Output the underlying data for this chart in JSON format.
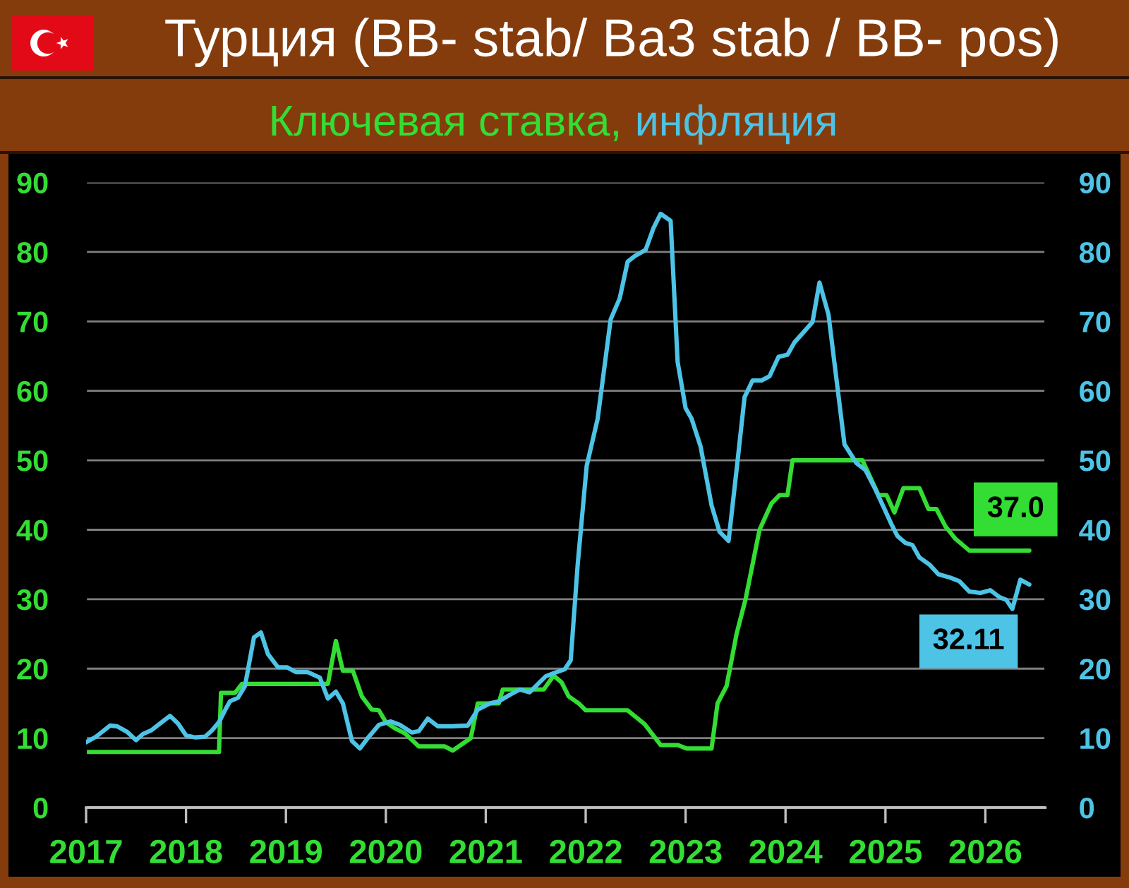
{
  "chart_data": {
    "type": "line",
    "title": "Турция (BB- stab/ Ba3 stab / BB- pos)",
    "xlim": [
      2017,
      2026.6
    ],
    "xticks": [
      2017,
      2018,
      2019,
      2020,
      2021,
      2022,
      2023,
      2024,
      2025,
      2026
    ],
    "ylim": [
      0,
      90
    ],
    "yticks": [
      0,
      10,
      20,
      30,
      40,
      50,
      60,
      70,
      80,
      90
    ],
    "y2lim": [
      0,
      90
    ],
    "y2ticks": [
      0,
      10,
      20,
      30,
      40,
      50,
      60,
      70,
      80,
      90
    ],
    "grid": "y",
    "legend": "top",
    "series": [
      {
        "name": "Ключевая ставка,",
        "color": "#33DD33",
        "x": [
          2017.0,
          2018.33,
          2018.35,
          2018.49,
          2018.56,
          2019.42,
          2019.5,
          2019.57,
          2019.67,
          2019.76,
          2019.86,
          2019.93,
          2020.0,
          2020.09,
          2020.19,
          2020.33,
          2020.59,
          2020.67,
          2020.85,
          2020.92,
          2021.13,
          2021.17,
          2021.58,
          2021.68,
          2021.76,
          2021.83,
          2021.93,
          2022.0,
          2022.42,
          2022.59,
          2022.75,
          2022.92,
          2023.01,
          2023.26,
          2023.32,
          2023.41,
          2023.51,
          2023.6,
          2023.67,
          2023.74,
          2023.86,
          2023.94,
          2024.02,
          2024.07,
          2024.77,
          2024.85,
          2024.93,
          2025.01,
          2025.09,
          2025.18,
          2025.34,
          2025.43,
          2025.51,
          2025.6,
          2025.7,
          2025.84,
          2026.44
        ],
        "values": [
          8,
          8,
          16.5,
          16.5,
          17.8,
          17.8,
          24,
          19.7,
          19.7,
          16,
          14.1,
          14,
          12.3,
          11.4,
          10.7,
          8.8,
          8.8,
          8.2,
          10,
          15,
          15,
          17,
          17,
          19,
          18,
          16,
          15,
          14,
          14,
          12,
          9,
          9,
          8.5,
          8.5,
          15,
          17.5,
          25,
          30,
          35,
          40,
          43.8,
          45,
          45,
          50,
          50,
          47.5,
          45,
          45,
          42.5,
          46,
          46,
          43,
          43,
          40.5,
          38.7,
          37,
          37
        ],
        "value_labels": [
          null,
          null,
          null,
          null,
          null,
          null,
          null,
          null,
          null,
          null,
          null,
          null,
          null,
          null,
          null,
          null,
          null,
          null,
          null,
          null,
          null,
          null,
          null,
          null,
          null,
          null,
          null,
          null,
          null,
          null,
          null,
          null,
          null,
          null,
          null,
          null,
          null,
          null,
          null,
          null,
          null,
          null,
          null,
          null,
          null,
          null,
          null,
          null,
          null,
          null,
          null,
          null,
          null,
          null,
          null,
          null,
          "37.0"
        ]
      },
      {
        "name": "инфляция",
        "color": "#4DC3E6",
        "axis": "y2",
        "x": [
          2017.0,
          2017.1,
          2017.24,
          2017.31,
          2017.41,
          2017.5,
          2017.57,
          2017.65,
          2017.74,
          2017.84,
          2017.92,
          2018.0,
          2018.09,
          2018.19,
          2018.26,
          2018.33,
          2018.39,
          2018.44,
          2018.52,
          2018.59,
          2018.68,
          2018.75,
          2018.82,
          2018.92,
          2019.01,
          2019.1,
          2019.22,
          2019.34,
          2019.42,
          2019.5,
          2019.57,
          2019.66,
          2019.74,
          2019.83,
          2019.93,
          2020.05,
          2020.14,
          2020.26,
          2020.33,
          2020.42,
          2020.52,
          2020.66,
          2020.82,
          2020.92,
          2021.04,
          2021.13,
          2021.25,
          2021.34,
          2021.44,
          2021.53,
          2021.6,
          2021.69,
          2021.79,
          2021.85,
          2021.92,
          2022.01,
          2022.12,
          2022.25,
          2022.34,
          2022.42,
          2022.49,
          2022.6,
          2022.68,
          2022.75,
          2022.85,
          2022.92,
          2023.0,
          2023.06,
          2023.15,
          2023.26,
          2023.34,
          2023.43,
          2023.51,
          2023.59,
          2023.67,
          2023.76,
          2023.84,
          2023.93,
          2024.02,
          2024.09,
          2024.19,
          2024.27,
          2024.34,
          2024.43,
          2024.59,
          2024.71,
          2024.8,
          2024.9,
          2024.99,
          2025.06,
          2025.12,
          2025.2,
          2025.27,
          2025.34,
          2025.44,
          2025.53,
          2025.65,
          2025.74,
          2025.84,
          2025.95,
          2026.05,
          2026.14,
          2026.21,
          2026.27,
          2026.35,
          2026.44
        ],
        "values": [
          9.4,
          10.2,
          11.8,
          11.7,
          10.9,
          9.7,
          10.6,
          11.1,
          12.1,
          13.2,
          12.1,
          10.4,
          10.1,
          10.2,
          11.1,
          12.3,
          14.0,
          15.3,
          15.8,
          17.5,
          24.5,
          25.2,
          22.1,
          20.2,
          20.2,
          19.5,
          19.5,
          18.7,
          15.7,
          16.7,
          15.0,
          9.6,
          8.5,
          10.2,
          11.9,
          12.4,
          11.9,
          10.8,
          11.0,
          12.8,
          11.7,
          11.7,
          11.8,
          14.1,
          15.0,
          15.3,
          16.3,
          17.0,
          16.6,
          17.9,
          18.9,
          19.4,
          19.9,
          21.2,
          35.0,
          49.2,
          56.0,
          70.3,
          73.3,
          78.6,
          79.4,
          80.3,
          83.5,
          85.5,
          84.5,
          64.2,
          57.5,
          56.0,
          52.0,
          43.5,
          39.7,
          38.4,
          48.6,
          59.1,
          61.5,
          61.5,
          62.1,
          64.9,
          65.2,
          67.0,
          68.6,
          69.9,
          75.6,
          71.0,
          52.3,
          49.6,
          48.6,
          45.8,
          43.0,
          40.8,
          39.1,
          38.1,
          37.8,
          36.0,
          35.0,
          33.6,
          33.1,
          32.6,
          31.1,
          30.9,
          31.3,
          30.3,
          29.9,
          28.6,
          32.8,
          32.11
        ],
        "value_labels": [
          null,
          null,
          null,
          null,
          null,
          null,
          null,
          null,
          null,
          null,
          null,
          null,
          null,
          null,
          null,
          null,
          null,
          null,
          null,
          null,
          null,
          null,
          null,
          null,
          null,
          null,
          null,
          null,
          null,
          null,
          null,
          null,
          null,
          null,
          null,
          null,
          null,
          null,
          null,
          null,
          null,
          null,
          null,
          null,
          null,
          null,
          null,
          null,
          null,
          null,
          null,
          null,
          null,
          null,
          null,
          null,
          null,
          null,
          null,
          null,
          null,
          null,
          null,
          null,
          null,
          null,
          null,
          null,
          null,
          null,
          null,
          null,
          null,
          null,
          null,
          null,
          null,
          null,
          null,
          null,
          null,
          null,
          null,
          null,
          null,
          null,
          null,
          null,
          null,
          null,
          null,
          null,
          null,
          null,
          null,
          null,
          null,
          null,
          null,
          null,
          null,
          null,
          null,
          null,
          null,
          "32.11"
        ]
      }
    ]
  }
}
